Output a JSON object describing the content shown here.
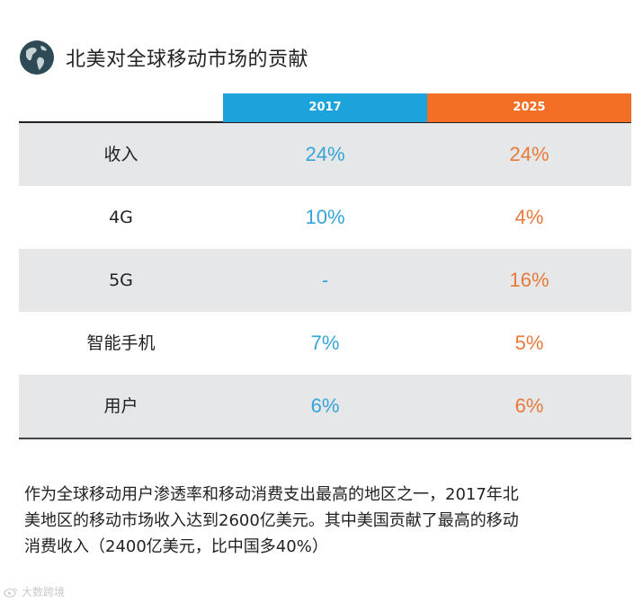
{
  "header": {
    "title": "北美对全球移动市场的贡献",
    "icon": "globe-icon"
  },
  "table": {
    "columns": [
      "2017",
      "2025"
    ],
    "rows": [
      {
        "label": "收入",
        "v2017": "24%",
        "v2025": "24%"
      },
      {
        "label": "4G",
        "v2017": "10%",
        "v2025": "4%"
      },
      {
        "label": "5G",
        "v2017": "-",
        "v2025": "16%"
      },
      {
        "label": "智能手机",
        "v2017": "7%",
        "v2025": "5%"
      },
      {
        "label": "用户",
        "v2017": "6%",
        "v2025": "6%"
      }
    ]
  },
  "paragraph": {
    "lines": [
      "作为全球移动用户渗透率和移动消费支出最高的地区之一，2017年北",
      "美地区的移动市场收入达到2600亿美元。其中美国贡献了最高的移动",
      "消费收入（2400亿美元，比中国多40%）"
    ]
  },
  "watermark": {
    "text": "大数跨境",
    "icon": "weibo-icon"
  },
  "colors": {
    "col2017": "#1ca3dc",
    "col2025": "#f26f25",
    "shade": "#e6e7e8"
  }
}
